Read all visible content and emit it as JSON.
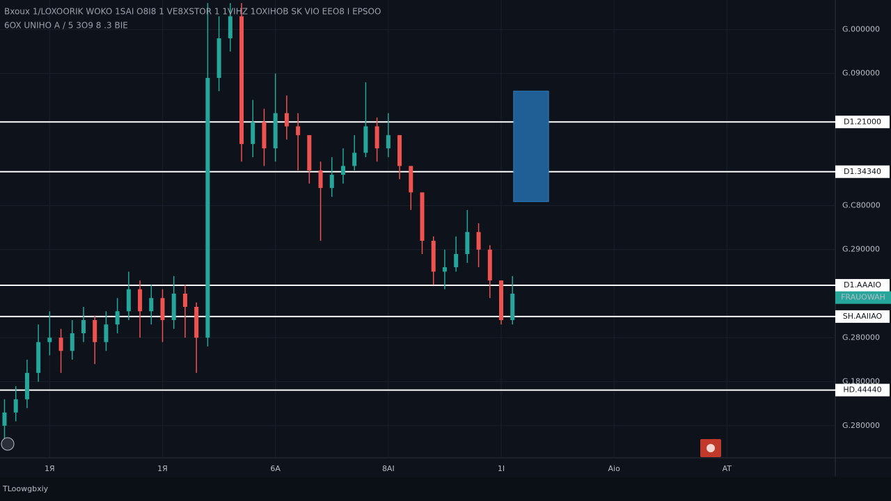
{
  "header": {
    "title": "Bxoux 1/LOXOORIK WOKO 1SAI O8I8 1 VE8XSTOR 1 1VIHZ 1OXIHOB SK VIO EEO8 I EPSOO",
    "subtitle": "6OX UNIHO A / 5 3O9 8 .3 BIE"
  },
  "footer": {
    "brand": "TLoowgbxiy"
  },
  "chart_data": {
    "type": "candlestick",
    "x": [
      6,
      7,
      8,
      9,
      10,
      11,
      12,
      13,
      14,
      15,
      16,
      17,
      18,
      19,
      20,
      21,
      22,
      23,
      24,
      25,
      26,
      27,
      28,
      29,
      30,
      31,
      32,
      33,
      34,
      35,
      36,
      37,
      38,
      39,
      40,
      41,
      42,
      43,
      44,
      45,
      46,
      47,
      48,
      49,
      50,
      51
    ],
    "open": [
      1.0,
      1.3,
      1.6,
      2.2,
      2.9,
      3.0,
      2.7,
      3.1,
      3.4,
      2.9,
      3.3,
      3.6,
      4.1,
      3.6,
      3.9,
      3.4,
      4.0,
      3.7,
      3.0,
      8.9,
      9.8,
      10.3,
      7.4,
      7.9,
      7.3,
      8.1,
      7.8,
      7.6,
      6.8,
      6.4,
      6.7,
      6.9,
      7.2,
      7.8,
      7.3,
      7.6,
      6.9,
      6.3,
      5.2,
      4.5,
      4.6,
      4.9,
      5.4,
      5.0,
      4.3,
      3.4
    ],
    "high": [
      1.6,
      1.9,
      2.5,
      3.3,
      3.6,
      3.2,
      3.4,
      3.7,
      3.5,
      3.6,
      3.9,
      4.5,
      4.3,
      4.2,
      4.1,
      4.4,
      4.2,
      3.8,
      10.6,
      10.3,
      10.6,
      10.6,
      8.4,
      8.2,
      9.0,
      8.5,
      8.1,
      7.6,
      7.0,
      7.1,
      7.3,
      7.6,
      8.8,
      8.0,
      8.1,
      7.6,
      6.9,
      6.3,
      5.3,
      5.0,
      5.3,
      5.9,
      5.6,
      5.1,
      4.3,
      4.4
    ],
    "low": [
      0.5,
      1.1,
      1.4,
      2.0,
      2.6,
      2.2,
      2.5,
      2.9,
      2.4,
      2.7,
      3.1,
      3.4,
      3.0,
      3.3,
      2.9,
      3.2,
      3.0,
      2.2,
      2.8,
      8.6,
      9.5,
      7.0,
      7.1,
      6.9,
      7.0,
      7.5,
      6.8,
      6.5,
      5.2,
      6.2,
      6.5,
      6.8,
      7.1,
      7.0,
      7.1,
      6.6,
      5.9,
      4.9,
      4.2,
      4.1,
      4.5,
      4.7,
      4.6,
      3.9,
      3.3,
      3.3
    ],
    "close": [
      1.3,
      1.6,
      2.2,
      2.9,
      3.0,
      2.7,
      3.1,
      3.4,
      2.9,
      3.3,
      3.6,
      4.1,
      3.6,
      3.9,
      3.4,
      4.0,
      3.7,
      3.0,
      8.9,
      9.8,
      10.3,
      7.4,
      7.9,
      7.3,
      8.1,
      7.8,
      7.6,
      6.8,
      6.4,
      6.7,
      6.9,
      7.2,
      7.8,
      7.3,
      7.6,
      6.9,
      6.3,
      5.2,
      4.5,
      4.6,
      4.9,
      5.4,
      5.0,
      4.3,
      3.4,
      4.0
    ],
    "up_color": "#26a69a",
    "down_color": "#ef5350",
    "xlim": [
      5.6,
      79.6
    ],
    "xticks": [
      {
        "value": 10,
        "label": "1Я"
      },
      {
        "value": 20,
        "label": "1Я"
      },
      {
        "value": 30,
        "label": "6A"
      },
      {
        "value": 40,
        "label": "8AI"
      },
      {
        "value": 50,
        "label": "1I"
      },
      {
        "value": 60,
        "label": "Aio"
      },
      {
        "value": 70,
        "label": "AT"
      }
    ],
    "ylim": [
      0.27,
      10.67
    ],
    "yticks": [
      {
        "value": 10,
        "label": "G.000000"
      },
      {
        "value": 9,
        "label": "G.090000"
      },
      {
        "value": 6,
        "label": "G.C80000"
      },
      {
        "value": 5,
        "label": "G.290000"
      },
      {
        "value": 3,
        "label": "G.280000"
      },
      {
        "value": 2,
        "label": "G.180000"
      },
      {
        "value": 1,
        "label": "G.280000"
      }
    ],
    "grid": true,
    "levels": [
      {
        "value": 7.9,
        "label": "D1.21000"
      },
      {
        "value": 6.77,
        "label": "D1.34340"
      },
      {
        "value": 4.19,
        "label": "D1.AAAIO"
      },
      {
        "value": 3.48,
        "label": "SH.AAIIAO"
      },
      {
        "value": 1.81,
        "label": "HD.44440"
      }
    ],
    "level_color": "#ffffff",
    "last_price": {
      "value": 3.91,
      "label": "FRAUOWAH",
      "color": "#26a69a"
    },
    "position": {
      "x": [
        51.1,
        54.2
      ],
      "y": [
        6.09,
        8.6
      ],
      "color": "#1f5f96"
    }
  }
}
